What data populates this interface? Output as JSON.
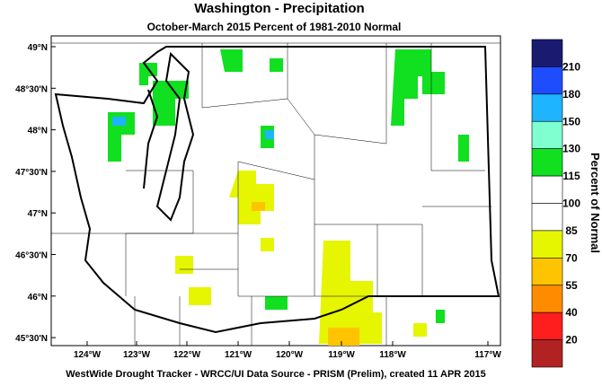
{
  "header": {
    "title": "Washington - Precipitation",
    "subtitle": "October-March 2015  Percent of 1981-2010 Normal"
  },
  "map": {
    "lon_labels": [
      "124°W",
      "123°W",
      "122°W",
      "121°W",
      "120°W",
      "119°W",
      "118°W",
      "117°W"
    ],
    "lat_labels": [
      "49°N",
      "48°30'N",
      "48°N",
      "47°30'N",
      "47°N",
      "46°30'N",
      "46°N",
      "45°30'N"
    ]
  },
  "colorbar": {
    "title": "Percent of Normal",
    "labels": [
      210,
      180,
      150,
      130,
      115,
      100,
      85,
      70,
      55,
      40,
      20
    ],
    "colors": [
      "#1a1a70",
      "#1e4cff",
      "#1eb4ff",
      "#80ffd0",
      "#10e020",
      "#ffffff",
      "#ffffff",
      "#e6f500",
      "#ffc400",
      "#ff8c00",
      "#ff1e1e",
      "#b22222"
    ]
  },
  "footer": "WestWide Drought Tracker - WRCC/UI  Data Source - PRISM (Prelim), created 11 APR 2015"
}
